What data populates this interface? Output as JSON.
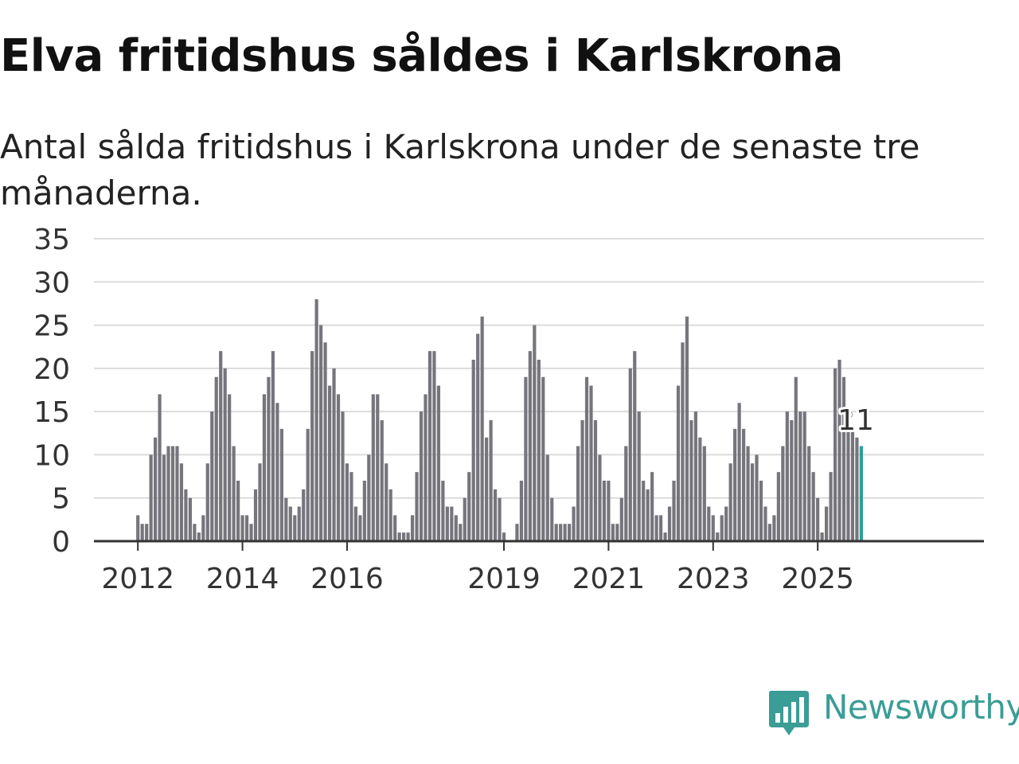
{
  "title": "Elva fritidshus såldes i Karlskrona",
  "subtitle": "Antal sålda fritidshus i Karlskrona under de senaste tre månaderna.",
  "brand": {
    "name": "Newsworthy",
    "color": "#3a9d96"
  },
  "chart_data": {
    "type": "bar",
    "title": "Elva fritidshus såldes i Karlskrona",
    "subtitle": "Antal sålda fritidshus i Karlskrona under de senaste tre månaderna.",
    "xlabel": "",
    "ylabel": "",
    "ylim": [
      0,
      35
    ],
    "yticks": [
      0,
      5,
      10,
      15,
      20,
      25,
      30,
      35
    ],
    "grid": true,
    "bar_color": "#76757c",
    "highlight_color": "#2aa198",
    "start_month": "2012-01",
    "xticks": [
      {
        "label": "2012",
        "month": "2012-01"
      },
      {
        "label": "2014",
        "month": "2014-01"
      },
      {
        "label": "2016",
        "month": "2016-01"
      },
      {
        "label": "2019",
        "month": "2019-01"
      },
      {
        "label": "2021",
        "month": "2021-01"
      },
      {
        "label": "2023",
        "month": "2023-01"
      },
      {
        "label": "2025",
        "month": "2025-01"
      }
    ],
    "values": [
      3,
      2,
      2,
      10,
      12,
      17,
      10,
      11,
      11,
      11,
      9,
      6,
      5,
      2,
      1,
      3,
      9,
      15,
      19,
      22,
      20,
      17,
      11,
      7,
      3,
      3,
      2,
      6,
      9,
      17,
      19,
      22,
      16,
      13,
      5,
      4,
      3,
      4,
      6,
      13,
      22,
      28,
      25,
      23,
      18,
      20,
      17,
      15,
      9,
      8,
      4,
      3,
      7,
      10,
      17,
      17,
      14,
      9,
      6,
      3,
      1,
      1,
      1,
      3,
      8,
      15,
      17,
      22,
      22,
      18,
      7,
      4,
      4,
      3,
      2,
      5,
      8,
      21,
      24,
      26,
      12,
      14,
      6,
      5,
      1,
      0,
      0,
      2,
      7,
      19,
      22,
      25,
      21,
      19,
      10,
      5,
      2,
      2,
      2,
      2,
      4,
      11,
      14,
      19,
      18,
      14,
      10,
      7,
      7,
      2,
      2,
      5,
      11,
      20,
      22,
      15,
      7,
      6,
      8,
      3,
      3,
      1,
      4,
      7,
      18,
      23,
      26,
      14,
      15,
      12,
      11,
      4,
      3,
      1,
      3,
      4,
      9,
      13,
      16,
      13,
      11,
      9,
      10,
      7,
      4,
      2,
      3,
      8,
      11,
      15,
      14,
      19,
      15,
      15,
      11,
      8,
      5,
      1,
      4,
      8,
      20,
      21,
      19,
      14,
      13,
      12,
      11
    ],
    "annotation": {
      "text": "11",
      "index": 166
    }
  }
}
